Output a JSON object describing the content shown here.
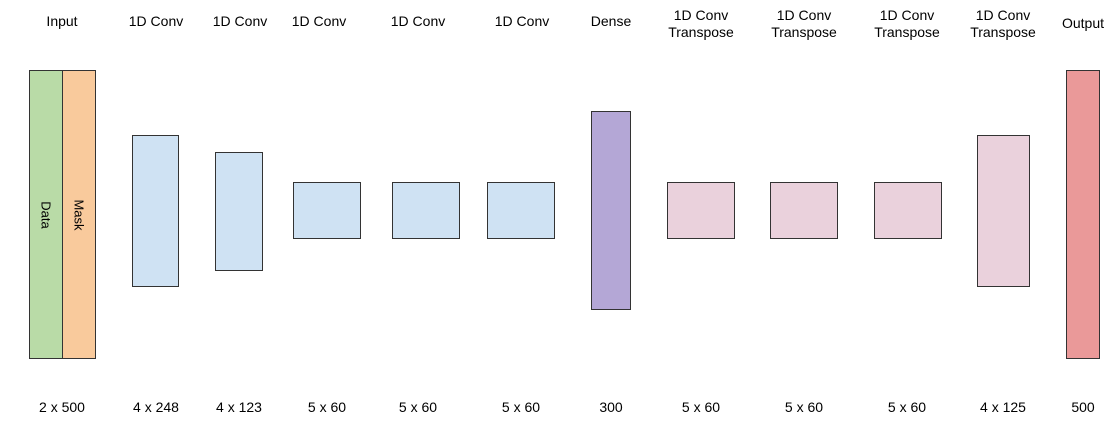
{
  "input": {
    "title": "Input",
    "channels": [
      "Data",
      "Mask"
    ],
    "dims": "2 x 500",
    "colors": [
      "#b9dba7",
      "#f9ca9c"
    ]
  },
  "layers": [
    {
      "title": "1D Conv",
      "dims": "4 x 248",
      "color": "#cfe2f3"
    },
    {
      "title": "1D Conv",
      "dims": "4 x 123",
      "color": "#cfe2f3"
    },
    {
      "title": "1D Conv",
      "dims": "5 x 60",
      "color": "#cfe2f3"
    },
    {
      "title": "1D Conv",
      "dims": "5 x 60",
      "color": "#cfe2f3"
    },
    {
      "title": "1D Conv",
      "dims": "5 x 60",
      "color": "#cfe2f3"
    },
    {
      "title": "Dense",
      "dims": "300",
      "color": "#b4a7d6"
    },
    {
      "title": "1D Conv\nTranspose",
      "dims": "5 x 60",
      "color": "#ead1dc"
    },
    {
      "title": "1D Conv\nTranspose",
      "dims": "5 x 60",
      "color": "#ead1dc"
    },
    {
      "title": "1D Conv\nTranspose",
      "dims": "5 x 60",
      "color": "#ead1dc"
    },
    {
      "title": "1D Conv\nTranspose",
      "dims": "4 x 125",
      "color": "#ead1dc"
    }
  ],
  "output": {
    "title": "Output",
    "dims": "500",
    "color": "#ea9999"
  }
}
